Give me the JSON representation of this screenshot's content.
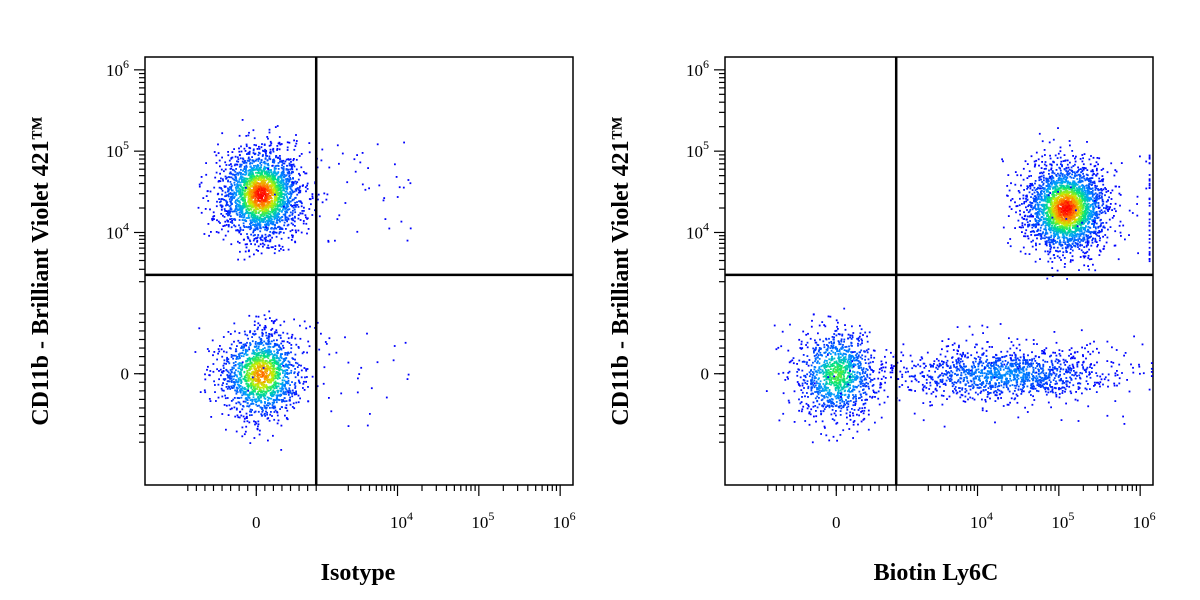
{
  "chart_data": [
    {
      "type": "scatter",
      "subtype": "flow-cytometry-pseudocolor-density",
      "xlabel": "Isotype",
      "ylabel": "CD11b - Brilliant Violet 421™",
      "x_scale": "biexponential",
      "y_scale": "biexponential",
      "xlim": [
        -1000,
        1000000
      ],
      "ylim": [
        -1000,
        1000000
      ],
      "x_ticks": [
        "0",
        "10^4",
        "10^5",
        "10^6"
      ],
      "y_ticks": [
        "0",
        "10^4",
        "10^5",
        "10^6"
      ],
      "gate": {
        "x": 700,
        "y": 2500
      },
      "grid": false,
      "color_scale": [
        "#0000ff",
        "#00c8ff",
        "#00ff80",
        "#ffff00",
        "#ff8000",
        "#ff0000"
      ],
      "populations": [
        {
          "cx": 50,
          "cy": 30000,
          "events": 2400,
          "peak": "red",
          "spread": "tight"
        },
        {
          "cx": 50,
          "cy": 0,
          "events": 1500,
          "peak": "orange",
          "spread": "tight"
        }
      ]
    },
    {
      "type": "scatter",
      "subtype": "flow-cytometry-pseudocolor-density",
      "xlabel": "Biotin Ly6C",
      "ylabel": "CD11b - Brilliant Violet 421™",
      "x_scale": "biexponential",
      "y_scale": "biexponential",
      "xlim": [
        -1000,
        1000000
      ],
      "ylim": [
        -1000,
        1000000
      ],
      "x_ticks": [
        "0",
        "10^4",
        "10^5",
        "10^6"
      ],
      "y_ticks": [
        "0",
        "10^4",
        "10^5",
        "10^6"
      ],
      "gate": {
        "x": 700,
        "y": 2500
      },
      "grid": false,
      "color_scale": [
        "#0000ff",
        "#00c8ff",
        "#00ff80",
        "#ffff00",
        "#ff8000",
        "#ff0000"
      ],
      "populations": [
        {
          "cx": 120000,
          "cy": 20000,
          "events": 2600,
          "peak": "red",
          "spread": "tight"
        },
        {
          "cx": 0,
          "cy": 0,
          "events": 1100,
          "peak": "green",
          "spread": "tight"
        },
        {
          "cx": 20000,
          "cy": 0,
          "events": 1300,
          "peak": "blue",
          "spread": "broad"
        }
      ]
    }
  ]
}
